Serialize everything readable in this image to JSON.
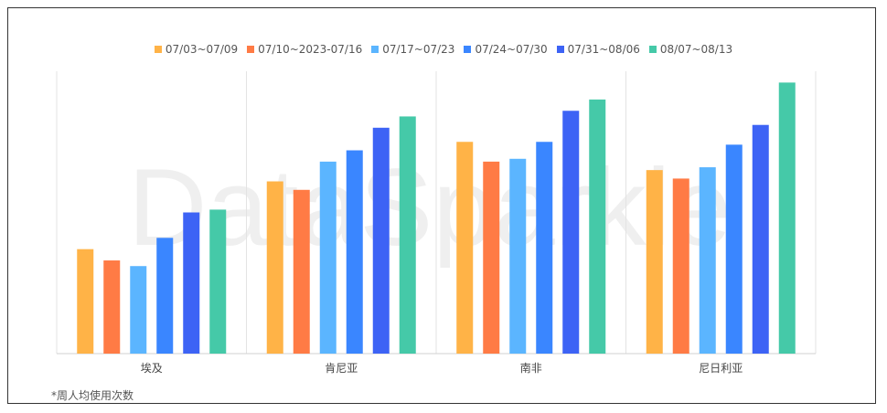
{
  "chart_data": {
    "type": "bar",
    "title": "",
    "xlabel": "",
    "ylabel": "",
    "categories": [
      "埃及",
      "肯尼亚",
      "南非",
      "尼日利亚"
    ],
    "series": [
      {
        "name": "07/03~07/09",
        "color": "#FFB347",
        "values": [
          37,
          61,
          75,
          65
        ]
      },
      {
        "name": "07/10~2023-07/16",
        "color": "#FF7B45",
        "values": [
          33,
          58,
          68,
          62
        ]
      },
      {
        "name": "07/17~07/23",
        "color": "#5BB5FF",
        "values": [
          31,
          68,
          69,
          66
        ]
      },
      {
        "name": "07/24~07/30",
        "color": "#3A86FF",
        "values": [
          41,
          72,
          75,
          74
        ]
      },
      {
        "name": "07/31~08/06",
        "color": "#3D63F5",
        "values": [
          50,
          80,
          86,
          81
        ]
      },
      {
        "name": "08/07~08/13",
        "color": "#45C9A8",
        "values": [
          51,
          84,
          90,
          96
        ]
      }
    ],
    "ylim": [
      0,
      100
    ],
    "grid": false,
    "legend_position": "top-center"
  },
  "footnote": "*周人均使用次数",
  "watermark": "DataSparkle"
}
